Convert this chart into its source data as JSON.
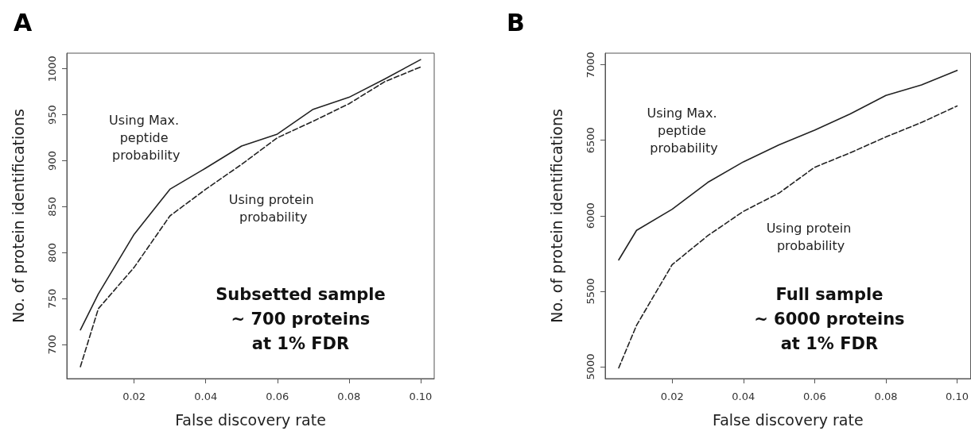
{
  "chart_data": [
    {
      "type": "line",
      "title": "A",
      "xlabel": "False discovery rate",
      "ylabel": "No. of protein identifications",
      "x": [
        0.005,
        0.01,
        0.02,
        0.03,
        0.04,
        0.05,
        0.06,
        0.07,
        0.08,
        0.09,
        0.1
      ],
      "series": [
        {
          "name": "Using Max. peptide probability",
          "color": "#222222",
          "line_style": "solid",
          "values": [
            716,
            755,
            820,
            869,
            892,
            916,
            929,
            956,
            969,
            989,
            1010
          ]
        },
        {
          "name": "Using protein probability",
          "color": "#222222",
          "line_style": "dashed",
          "values": [
            676,
            739,
            784,
            840,
            869,
            896,
            925,
            943,
            962,
            986,
            1002
          ]
        }
      ],
      "xlim": [
        0.0012,
        0.1038
      ],
      "ylim": [
        663,
        1017
      ],
      "xticks": [
        0.02,
        0.04,
        0.06,
        0.08,
        {
          "value": 0.1,
          "label": "0.10"
        }
      ],
      "yticks": [
        700,
        750,
        800,
        850,
        900,
        950,
        1000
      ],
      "grid": false,
      "marker": "none",
      "annotations": [
        "Subsetted sample\n~ 700 proteins\nat 1% FDR"
      ]
    },
    {
      "type": "line",
      "title": "B",
      "xlabel": "False discovery rate",
      "ylabel": "No. of protein identifications",
      "x": [
        0.005,
        0.01,
        0.02,
        0.03,
        0.04,
        0.05,
        0.06,
        0.07,
        0.08,
        0.09,
        0.1
      ],
      "series": [
        {
          "name": "Using Max. peptide probability",
          "color": "#222222",
          "line_style": "solid",
          "values": [
            5707,
            5903,
            6043,
            6221,
            6357,
            6470,
            6567,
            6675,
            6797,
            6867,
            6963
          ]
        },
        {
          "name": "Using protein probability",
          "color": "#222222",
          "line_style": "dashed",
          "values": [
            4992,
            5274,
            5676,
            5868,
            6029,
            6150,
            6321,
            6417,
            6522,
            6618,
            6727
          ]
        }
      ],
      "xlim": [
        0.0012,
        0.1038
      ],
      "ylim": [
        4921,
        7077
      ],
      "xticks": [
        0.02,
        0.04,
        0.06,
        0.08,
        {
          "value": 0.1,
          "label": "0.10"
        }
      ],
      "yticks": [
        5000,
        5500,
        6000,
        6500,
        7000
      ],
      "grid": false,
      "marker": "none",
      "annotations": [
        "Full sample\n~ 6000 proteins\nat 1% FDR"
      ]
    }
  ]
}
